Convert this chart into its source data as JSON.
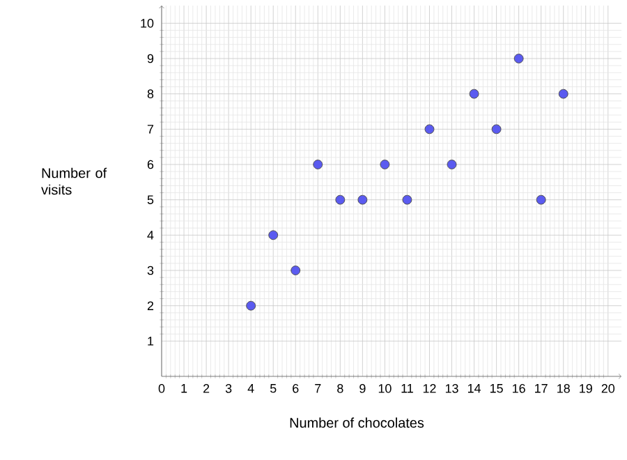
{
  "chart_data": {
    "type": "scatter",
    "xlabel": "Number of chocolates",
    "ylabel": "Number of visits",
    "x": [
      4,
      5,
      6,
      7,
      8,
      9,
      10,
      11,
      12,
      13,
      14,
      15,
      16,
      17,
      18
    ],
    "values": [
      2,
      4,
      3,
      6,
      5,
      5,
      6,
      5,
      7,
      6,
      8,
      7,
      9,
      5,
      8
    ],
    "color": "#5b5bf0",
    "marker": "circle",
    "grid": true,
    "xlim": [
      0,
      20.6
    ],
    "ylim": [
      0,
      10.5
    ],
    "xticks": [
      0,
      1,
      2,
      3,
      4,
      5,
      6,
      7,
      8,
      9,
      10,
      11,
      12,
      13,
      14,
      15,
      16,
      17,
      18,
      19,
      20
    ],
    "yticks": [
      1,
      2,
      3,
      4,
      5,
      6,
      7,
      8,
      9,
      10
    ]
  }
}
